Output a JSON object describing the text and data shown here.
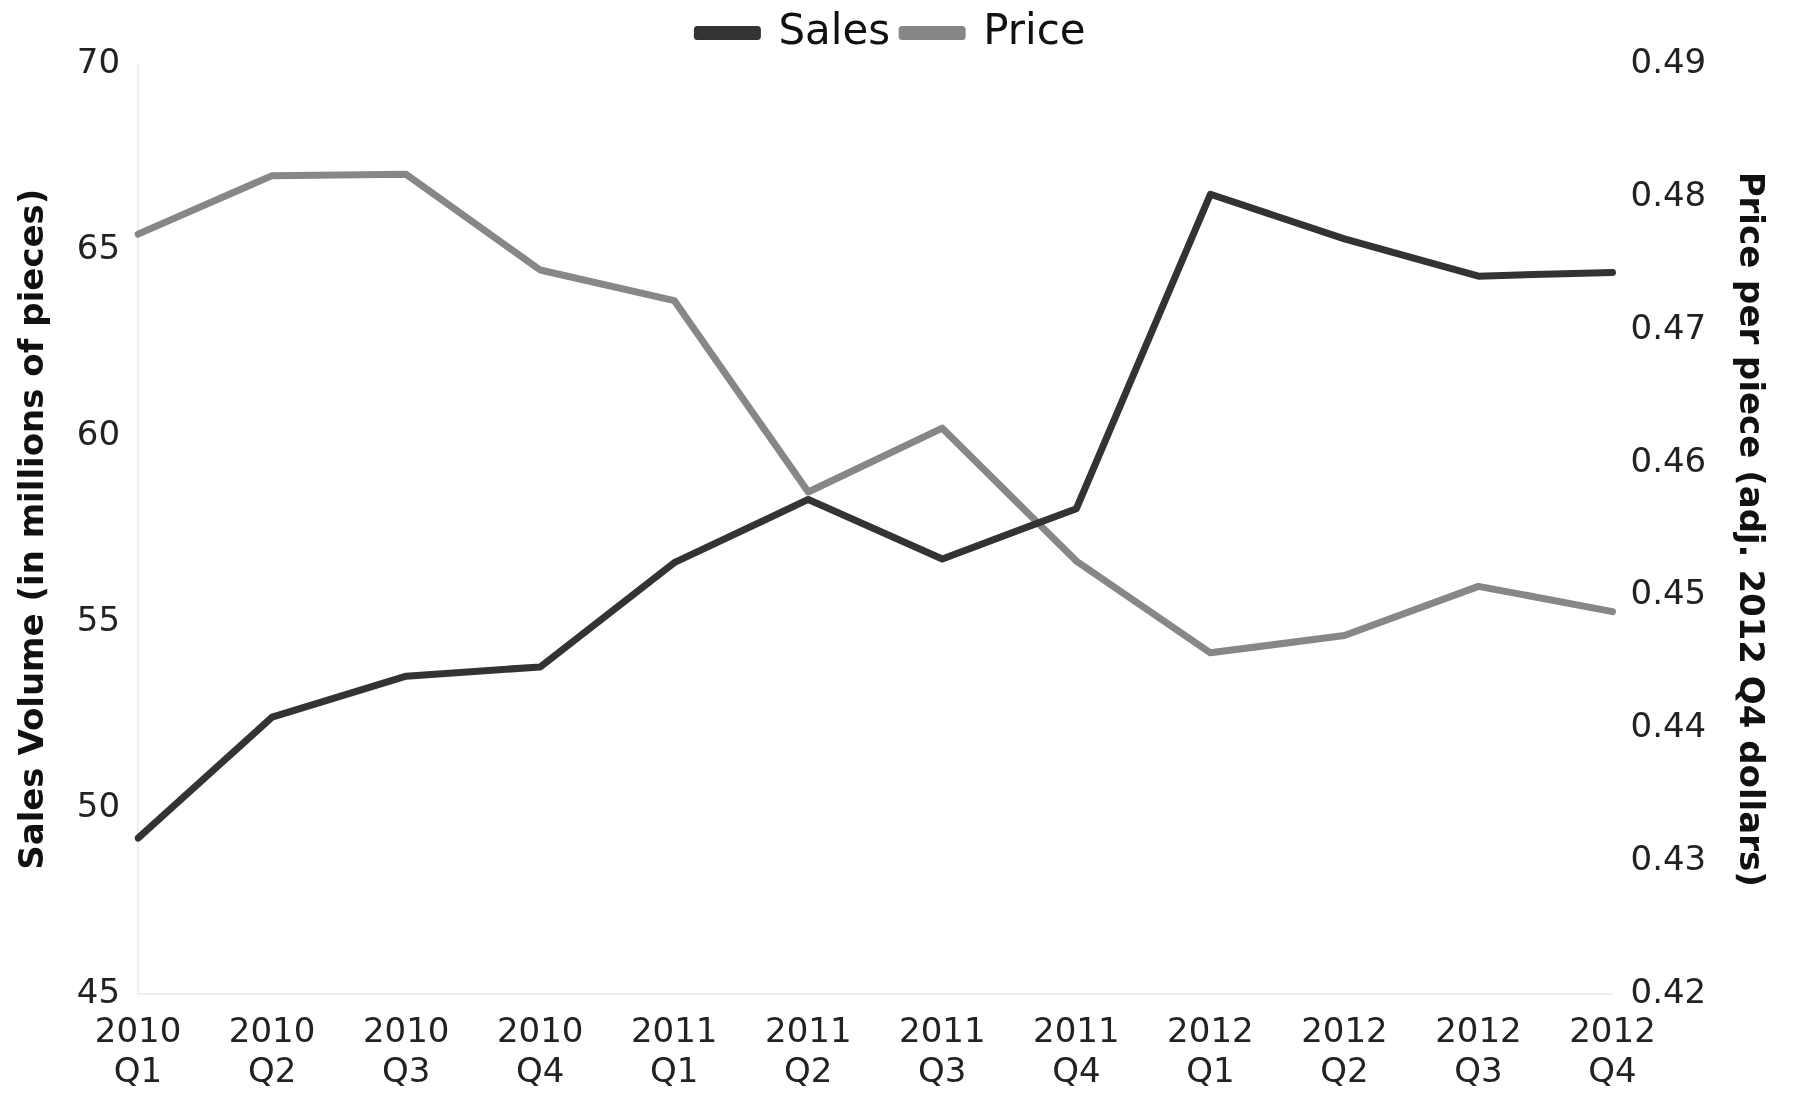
{
  "chart_data": {
    "type": "line",
    "categories": [
      "2010 Q1",
      "2010 Q2",
      "2010 Q3",
      "2010 Q4",
      "2011 Q1",
      "2011 Q2",
      "2011 Q3",
      "2011 Q4",
      "2012 Q1",
      "2012 Q2",
      "2012 Q3",
      "2012 Q4"
    ],
    "series": [
      {
        "name": "Sales",
        "color": "#333333",
        "values": [
          49.2,
          52.45,
          53.55,
          53.8,
          56.6,
          58.3,
          56.7,
          58.05,
          66.5,
          65.3,
          64.3,
          64.4
        ]
      },
      {
        "name": "Price",
        "color": "#878787",
        "axis": "y2",
        "values": [
          0.4772,
          0.4816,
          0.4817,
          0.4745,
          0.4722,
          0.4578,
          0.4626,
          0.4526,
          0.4457,
          0.447,
          0.4507,
          0.4488
        ]
      }
    ],
    "ylabel": "Sales Volume (in millions of pieces)",
    "y2label": "Price per piece (adj. 2012 Q4 dollars)",
    "ylim": [
      45,
      70
    ],
    "yticks": [
      45,
      50,
      55,
      60,
      65,
      70
    ],
    "y2lim": [
      0.42,
      0.49
    ],
    "y2ticks": [
      0.42,
      0.43,
      0.44,
      0.45,
      0.46,
      0.47,
      0.48,
      0.49
    ],
    "legend": "top",
    "grid": false,
    "marker": "none",
    "line_style": "solid"
  }
}
